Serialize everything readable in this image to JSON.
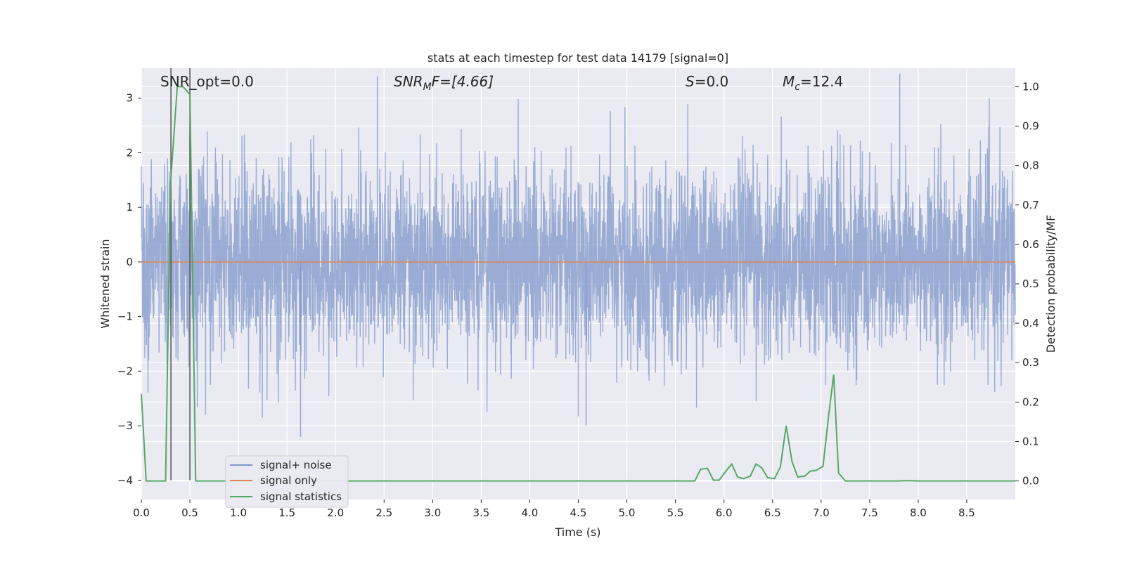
{
  "chart_data": {
    "type": "line",
    "title": "stats at each timestep for test data 14179 [signal=0]",
    "xlabel": "Time (s)",
    "ylabel_left": "Whitened strain",
    "ylabel_right": "Detection probability/MF",
    "xlim": [
      0,
      9.0
    ],
    "ylim_left": [
      -4.35,
      3.55
    ],
    "ylim_right": [
      -0.047,
      1.047
    ],
    "grid": true,
    "legend_position": "lower left",
    "x_ticks": [
      "0.0",
      "0.5",
      "1.0",
      "1.5",
      "2.0",
      "2.5",
      "3.0",
      "3.5",
      "4.0",
      "4.5",
      "5.0",
      "5.5",
      "6.0",
      "6.5",
      "7.0",
      "7.5",
      "8.0",
      "8.5"
    ],
    "y_left_ticks": [
      "3",
      "2",
      "1",
      "0",
      "−1",
      "−2",
      "−3",
      "−4"
    ],
    "y_right_ticks": [
      "1.0",
      "0.9",
      "0.8",
      "0.7",
      "0.6",
      "0.5",
      "0.4",
      "0.3",
      "0.2",
      "0.1",
      "0.0"
    ],
    "annotations": {
      "snr_opt": "SNR_opt=0.0",
      "snr_mf_sym": "SNR",
      "snr_mf_sub": "M",
      "snr_mf_rest": "F=[4.66]",
      "s_sym": "S",
      "s_rest": "=0.0",
      "mc_sym": "M",
      "mc_sub": "c",
      "mc_rest": "=12.4"
    },
    "series": [
      {
        "name": "signal+ noise",
        "color": "#7f97c9",
        "axis": "left",
        "noise_std": 0.85,
        "extreme_spikes": [
          {
            "x": 1.64,
            "y": -3.2
          },
          {
            "x": 2.43,
            "y": 3.4
          },
          {
            "x": 4.58,
            "y": -3.0
          },
          {
            "x": 7.81,
            "y": 3.45
          },
          {
            "x": 0.5,
            "y": 2.25
          }
        ]
      },
      {
        "name": "signal only",
        "color": "#dd8452",
        "axis": "left",
        "constant": 0.0
      },
      {
        "name": "signal statistics",
        "color": "#55a868",
        "axis": "right",
        "x": [
          0.0,
          0.05,
          0.1,
          0.18,
          0.25,
          0.3,
          0.37,
          0.43,
          0.5,
          0.56,
          0.6,
          1.0,
          2.0,
          3.0,
          4.0,
          5.0,
          5.7,
          5.76,
          5.83,
          5.89,
          5.95,
          6.02,
          6.08,
          6.14,
          6.2,
          6.27,
          6.33,
          6.39,
          6.45,
          6.52,
          6.58,
          6.64,
          6.7,
          6.76,
          6.83,
          6.89,
          6.95,
          7.02,
          7.08,
          7.13,
          7.18,
          7.25,
          7.32,
          7.4,
          7.8,
          7.88,
          8.0,
          8.5,
          9.0
        ],
        "y": [
          0.22,
          0.0,
          0.0,
          0.0,
          0.0,
          0.75,
          1.0,
          1.0,
          0.98,
          0.0,
          0.0,
          0.0,
          0.0,
          0.0,
          0.0,
          0.0,
          0.0,
          0.03,
          0.032,
          0.002,
          0.002,
          0.025,
          0.043,
          0.01,
          0.006,
          0.012,
          0.043,
          0.033,
          0.008,
          0.006,
          0.035,
          0.14,
          0.05,
          0.01,
          0.012,
          0.025,
          0.027,
          0.037,
          0.17,
          0.27,
          0.02,
          0.0,
          0.0,
          0.0,
          0.0,
          0.001,
          0.0,
          0.0,
          0.0
        ]
      }
    ],
    "vertical_markers": [
      {
        "x": 0.305,
        "label_axis": "left"
      },
      {
        "x": 0.5,
        "label_axis": "left"
      }
    ]
  }
}
